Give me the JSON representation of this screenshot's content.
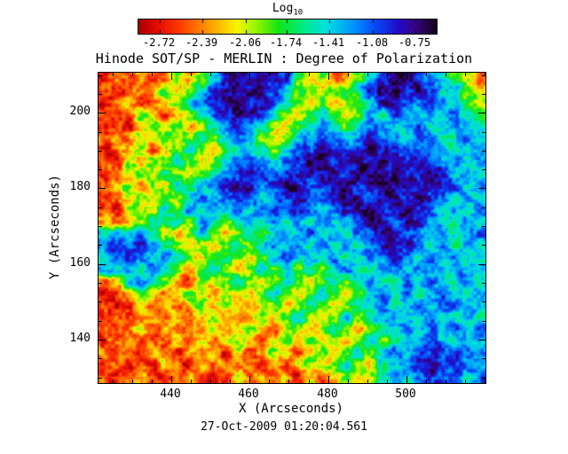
{
  "title": "Hinode SOT/SP - MERLIN : Degree of Polarization",
  "timestamp": "27-Oct-2009 01:20:04.561",
  "colorbar": {
    "label_main": "Log",
    "label_sub": "10",
    "ticks": [
      "-2.72",
      "-2.39",
      "-2.06",
      "-1.74",
      "-1.41",
      "-1.08",
      "-0.75"
    ],
    "tick_values": [
      -2.72,
      -2.39,
      -2.06,
      -1.74,
      -1.41,
      -1.08,
      -0.75
    ],
    "vmin": -2.885,
    "vmax": -0.585,
    "colormap_stops": [
      [
        0.0,
        170,
        0,
        0
      ],
      [
        0.06,
        230,
        10,
        0
      ],
      [
        0.14,
        255,
        60,
        0
      ],
      [
        0.24,
        255,
        160,
        0
      ],
      [
        0.33,
        250,
        245,
        0
      ],
      [
        0.4,
        140,
        245,
        0
      ],
      [
        0.47,
        20,
        230,
        20
      ],
      [
        0.55,
        0,
        235,
        130
      ],
      [
        0.63,
        0,
        225,
        225
      ],
      [
        0.72,
        0,
        150,
        255
      ],
      [
        0.8,
        10,
        70,
        245
      ],
      [
        0.875,
        35,
        10,
        200
      ],
      [
        0.93,
        55,
        5,
        130
      ],
      [
        1.0,
        20,
        0,
        30
      ]
    ]
  },
  "axes": {
    "xlabel": "X (Arcseconds)",
    "ylabel": "Y (Arcseconds)",
    "x_range": [
      421.4,
      520.2
    ],
    "y_range": [
      128.5,
      210.6
    ],
    "x_ticks": [
      440,
      460,
      480,
      500
    ],
    "y_ticks": [
      140,
      160,
      180,
      200
    ],
    "minor_tick_interval": 5
  },
  "chart_data": {
    "type": "heatmap",
    "title": "Hinode SOT/SP - MERLIN : Degree of Polarization",
    "xlabel": "X (Arcseconds)",
    "ylabel": "Y (Arcseconds)",
    "colorbar_label": "Log10",
    "colorbar_ticks": [
      -2.72,
      -2.39,
      -2.06,
      -1.74,
      -1.41,
      -1.08,
      -0.75
    ],
    "colormap": "rainbow: red = low polarization, dark purple/black = high",
    "x_range": [
      421.4,
      520.2
    ],
    "y_range": [
      128.5,
      210.6
    ],
    "value_range_log10": [
      -2.885,
      -0.585
    ],
    "grid_cols": 32,
    "grid_rows": 26,
    "grid_order": "rows top (y=210.6) to bottom (y=128.5), columns left (x=421.4) to right (x=520.2)",
    "values_log10": [
      [
        -2.7,
        -2.5,
        -2.7,
        -2.2,
        -2.5,
        -2.5,
        -1.9,
        -2.2,
        -1.9,
        -1.45,
        -0.95,
        -0.78,
        -0.78,
        -0.95,
        -0.78,
        -0.95,
        -1.9,
        -2.2,
        -1.9,
        -2.5,
        -2.2,
        -1.9,
        -1.45,
        -0.95,
        -0.78,
        -0.78,
        -0.95,
        -1.15,
        -1.45,
        -1.9,
        -2.2,
        -2.5
      ],
      [
        -2.5,
        -2.7,
        -2.5,
        -2.5,
        -2.2,
        -1.9,
        -2.2,
        -1.9,
        -1.45,
        -0.95,
        -0.78,
        -0.78,
        -0.78,
        -0.78,
        -0.95,
        -1.45,
        -1.9,
        -1.9,
        -2.2,
        -1.9,
        -1.9,
        -1.45,
        -0.95,
        -0.78,
        -0.78,
        -0.95,
        -0.78,
        -0.95,
        -1.45,
        -1.15,
        -1.9,
        -2.2
      ],
      [
        -2.7,
        -2.5,
        -2.2,
        -2.7,
        -2.5,
        -2.2,
        -1.9,
        -1.45,
        -1.15,
        -0.95,
        -0.78,
        -0.78,
        -0.95,
        -0.78,
        -0.95,
        -1.45,
        -1.9,
        -2.2,
        -1.9,
        -2.2,
        -1.9,
        -1.9,
        -1.45,
        -0.95,
        -0.78,
        -0.95,
        -1.15,
        -0.95,
        -1.15,
        -1.45,
        -1.9,
        -1.9
      ],
      [
        -2.5,
        -2.7,
        -2.5,
        -1.9,
        -2.2,
        -2.5,
        -2.2,
        -1.9,
        -1.45,
        -1.15,
        -0.95,
        -0.78,
        -0.78,
        -0.95,
        -1.45,
        -1.9,
        -2.2,
        -1.9,
        -1.45,
        -1.9,
        -2.2,
        -1.9,
        -1.15,
        -1.45,
        -0.95,
        -1.15,
        -1.45,
        -1.15,
        -1.45,
        -1.15,
        -1.45,
        -1.9
      ],
      [
        -2.7,
        -2.5,
        -2.7,
        -2.2,
        -1.9,
        -2.2,
        -1.9,
        -2.2,
        -1.9,
        -1.45,
        -1.15,
        -0.95,
        -1.15,
        -1.45,
        -1.9,
        -2.2,
        -1.9,
        -1.45,
        -1.15,
        -1.45,
        -1.9,
        -1.45,
        -1.15,
        -1.15,
        -1.45,
        -1.45,
        -1.15,
        -1.45,
        -1.45,
        -1.15,
        -1.45,
        -1.45
      ],
      [
        -2.5,
        -2.2,
        -2.5,
        -1.9,
        -2.2,
        -1.9,
        -2.2,
        -1.9,
        -1.45,
        -1.9,
        -1.45,
        -1.15,
        -1.45,
        -1.9,
        -2.2,
        -1.9,
        -1.45,
        -1.15,
        -0.95,
        -1.15,
        -1.45,
        -1.15,
        -0.95,
        -1.15,
        -1.15,
        -1.45,
        -1.15,
        -1.15,
        -1.45,
        -1.45,
        -1.15,
        -1.45
      ],
      [
        -2.7,
        -2.5,
        -2.2,
        -1.9,
        -2.5,
        -2.2,
        -1.9,
        -1.45,
        -1.9,
        -2.2,
        -1.9,
        -1.45,
        -1.15,
        -1.45,
        -1.9,
        -1.45,
        -1.15,
        -0.95,
        -0.78,
        -0.95,
        -1.15,
        -0.95,
        -0.78,
        -0.95,
        -0.95,
        -1.15,
        -0.95,
        -1.15,
        -1.15,
        -1.45,
        -1.45,
        -1.15
      ],
      [
        -2.5,
        -2.7,
        -1.9,
        -2.2,
        -1.9,
        -1.9,
        -1.45,
        -1.9,
        -2.2,
        -1.9,
        -1.45,
        -1.15,
        -0.95,
        -1.15,
        -1.45,
        -1.15,
        -0.95,
        -0.78,
        -0.78,
        -0.95,
        -0.95,
        -0.78,
        -0.78,
        -0.78,
        -0.95,
        -0.95,
        -0.78,
        -0.95,
        -1.15,
        -1.15,
        -1.45,
        -1.15
      ],
      [
        -2.7,
        -2.5,
        -2.2,
        -1.9,
        -2.2,
        -1.45,
        -1.9,
        -2.2,
        -1.9,
        -1.45,
        -1.15,
        -0.95,
        -0.78,
        -0.95,
        -1.15,
        -0.95,
        -0.78,
        -0.78,
        -0.95,
        -0.78,
        -0.95,
        -0.78,
        -0.78,
        -0.78,
        -0.78,
        -0.95,
        -0.78,
        -0.78,
        -0.95,
        -1.45,
        -1.15,
        -1.45
      ],
      [
        -2.5,
        -2.2,
        -1.9,
        -2.5,
        -1.9,
        -2.2,
        -1.45,
        -1.9,
        -1.45,
        -1.15,
        -0.95,
        -0.78,
        -0.78,
        -1.15,
        -0.95,
        -0.78,
        -0.78,
        -0.95,
        -0.95,
        -0.78,
        -0.78,
        -0.95,
        -0.78,
        -0.78,
        -0.78,
        -0.78,
        -0.78,
        -0.78,
        -0.95,
        -1.15,
        -1.45,
        -1.15
      ],
      [
        -2.7,
        -2.5,
        -2.2,
        -1.9,
        -2.2,
        -1.9,
        -1.9,
        -1.45,
        -1.15,
        -1.45,
        -1.15,
        -0.95,
        -1.15,
        -1.45,
        -1.15,
        -0.95,
        -0.78,
        -0.95,
        -1.15,
        -0.95,
        -0.78,
        -0.78,
        -0.95,
        -0.78,
        -0.78,
        -0.95,
        -0.78,
        -0.95,
        -1.15,
        -1.45,
        -1.15,
        -1.45
      ],
      [
        -2.5,
        -2.7,
        -1.9,
        -2.2,
        -1.9,
        -1.45,
        -1.9,
        -1.15,
        -1.45,
        -1.15,
        -1.45,
        -1.15,
        -1.45,
        -1.15,
        -0.95,
        -1.15,
        -0.95,
        -1.15,
        -1.45,
        -1.15,
        -0.95,
        -0.78,
        -0.78,
        -0.95,
        -0.78,
        -0.78,
        -0.95,
        -1.15,
        -1.45,
        -1.15,
        -1.45,
        -1.15
      ],
      [
        -2.2,
        -2.5,
        -2.2,
        -1.9,
        -1.45,
        -1.9,
        -1.45,
        -1.9,
        -1.15,
        -1.45,
        -1.9,
        -1.45,
        -1.15,
        -1.45,
        -1.15,
        -1.45,
        -1.15,
        -1.45,
        -1.15,
        -1.45,
        -1.15,
        -0.95,
        -0.78,
        -0.78,
        -0.95,
        -0.78,
        -0.95,
        -1.15,
        -1.45,
        -1.45,
        -1.15,
        -1.45
      ],
      [
        -1.45,
        -1.15,
        -1.45,
        -1.15,
        -1.45,
        -1.9,
        -2.2,
        -1.9,
        -1.45,
        -1.9,
        -2.2,
        -1.9,
        -1.45,
        -1.9,
        -1.45,
        -1.15,
        -1.45,
        -1.15,
        -1.45,
        -1.15,
        -1.45,
        -1.15,
        -0.95,
        -0.78,
        -0.78,
        -0.95,
        -1.15,
        -1.45,
        -1.15,
        -1.45,
        -1.45,
        -1.15
      ],
      [
        -1.15,
        -0.95,
        -1.15,
        -0.95,
        -1.15,
        -1.45,
        -1.9,
        -2.2,
        -1.9,
        -2.2,
        -1.9,
        -1.45,
        -1.9,
        -1.45,
        -1.15,
        -1.45,
        -1.15,
        -1.45,
        -1.15,
        -1.45,
        -1.15,
        -1.45,
        -1.15,
        -0.95,
        -0.78,
        -0.95,
        -1.15,
        -1.45,
        -1.15,
        -1.45,
        -1.15,
        -1.45
      ],
      [
        -1.45,
        -1.15,
        -0.95,
        -1.15,
        -1.45,
        -1.15,
        -1.45,
        -1.9,
        -2.2,
        -1.9,
        -1.45,
        -1.9,
        -2.2,
        -1.9,
        -1.45,
        -1.15,
        -1.45,
        -1.15,
        -1.45,
        -1.15,
        -1.45,
        -1.45,
        -1.15,
        -1.15,
        -0.95,
        -1.15,
        -1.45,
        -1.15,
        -1.45,
        -1.15,
        -1.45,
        -1.45
      ],
      [
        -1.15,
        -1.45,
        -1.15,
        -1.45,
        -1.15,
        -1.45,
        -1.9,
        -2.2,
        -1.9,
        -1.45,
        -1.9,
        -2.2,
        -1.9,
        -1.45,
        -1.9,
        -1.45,
        -1.9,
        -1.45,
        -1.9,
        -1.45,
        -1.15,
        -1.45,
        -1.45,
        -1.15,
        -1.15,
        -1.45,
        -1.15,
        -1.45,
        -1.45,
        -1.15,
        -1.45,
        -1.15
      ],
      [
        -2.5,
        -2.2,
        -1.45,
        -1.15,
        -1.45,
        -1.9,
        -2.2,
        -2.5,
        -1.9,
        -2.2,
        -1.9,
        -1.45,
        -1.9,
        -2.2,
        -1.9,
        -1.45,
        -1.9,
        -2.2,
        -1.9,
        -1.45,
        -1.9,
        -1.45,
        -1.15,
        -1.45,
        -1.45,
        -1.15,
        -1.45,
        -1.15,
        -1.45,
        -1.45,
        -1.15,
        -1.45
      ],
      [
        -2.7,
        -2.5,
        -2.2,
        -1.9,
        -2.2,
        -2.5,
        -2.2,
        -1.9,
        -2.2,
        -2.5,
        -2.2,
        -1.9,
        -2.2,
        -1.9,
        -1.45,
        -1.9,
        -2.2,
        -1.9,
        -1.45,
        -1.9,
        -2.2,
        -1.9,
        -1.45,
        -1.15,
        -1.45,
        -1.15,
        -1.45,
        -1.45,
        -1.15,
        -1.45,
        -1.45,
        -1.15
      ],
      [
        -2.5,
        -2.7,
        -2.5,
        -2.2,
        -2.5,
        -2.2,
        -2.5,
        -2.2,
        -1.9,
        -2.2,
        -1.9,
        -2.2,
        -2.5,
        -2.2,
        -1.9,
        -2.2,
        -1.9,
        -1.45,
        -1.9,
        -2.2,
        -1.9,
        -1.45,
        -1.45,
        -1.15,
        -1.45,
        -1.45,
        -1.15,
        -1.45,
        -1.15,
        -1.15,
        -1.45,
        -1.45
      ],
      [
        -2.7,
        -2.5,
        -2.7,
        -2.5,
        -2.2,
        -2.5,
        -2.2,
        -2.5,
        -2.2,
        -1.9,
        -2.2,
        -2.5,
        -2.2,
        -1.9,
        -2.2,
        -1.9,
        -1.45,
        -1.9,
        -2.2,
        -1.9,
        -1.45,
        -1.9,
        -1.45,
        -1.45,
        -1.15,
        -1.45,
        -1.45,
        -1.15,
        -1.45,
        -1.45,
        -1.15,
        -1.45
      ],
      [
        -2.5,
        -2.7,
        -2.5,
        -2.2,
        -2.7,
        -2.2,
        -2.5,
        -2.2,
        -2.5,
        -2.2,
        -2.5,
        -2.2,
        -1.9,
        -2.2,
        -2.5,
        -2.2,
        -1.9,
        -2.2,
        -1.9,
        -1.45,
        -1.9,
        -2.2,
        -1.9,
        -1.45,
        -1.45,
        -1.15,
        -1.45,
        -1.15,
        -1.45,
        -1.15,
        -1.45,
        -1.15
      ],
      [
        -2.7,
        -2.5,
        -2.2,
        -2.5,
        -2.5,
        -2.7,
        -2.2,
        -2.5,
        -2.2,
        -2.5,
        -2.2,
        -1.9,
        -2.2,
        -2.5,
        -2.2,
        -1.9,
        -2.2,
        -1.9,
        -2.2,
        -1.9,
        -2.2,
        -1.9,
        -1.45,
        -1.9,
        -1.45,
        -1.45,
        -1.15,
        -0.95,
        -1.15,
        -1.45,
        -1.15,
        -1.45
      ],
      [
        -2.5,
        -2.7,
        -2.5,
        -2.7,
        -2.2,
        -2.5,
        -2.7,
        -2.2,
        -2.5,
        -2.2,
        -2.7,
        -2.2,
        -2.5,
        -2.2,
        -1.9,
        -2.2,
        -2.5,
        -2.2,
        -1.9,
        -2.2,
        -1.9,
        -1.45,
        -1.9,
        -1.45,
        -1.15,
        -1.45,
        -0.95,
        -0.95,
        -1.15,
        -0.95,
        -1.15,
        -1.15
      ],
      [
        -2.7,
        -2.5,
        -2.7,
        -2.5,
        -2.7,
        -2.2,
        -2.5,
        -2.7,
        -2.2,
        -2.5,
        -2.2,
        -2.5,
        -2.2,
        -2.7,
        -2.2,
        -2.5,
        -2.2,
        -1.9,
        -2.2,
        -1.9,
        -1.45,
        -1.9,
        -2.2,
        -1.45,
        -1.45,
        -1.15,
        -0.95,
        -0.78,
        -0.95,
        -0.95,
        -1.15,
        -1.45
      ],
      [
        -2.5,
        -2.7,
        -2.5,
        -2.2,
        -2.5,
        -2.7,
        -2.5,
        -2.2,
        -2.5,
        -2.7,
        -2.5,
        -2.2,
        -2.5,
        -2.2,
        -2.5,
        -2.2,
        -2.7,
        -2.2,
        -2.5,
        -2.2,
        -1.9,
        -2.2,
        -1.9,
        -1.45,
        -1.15,
        -1.45,
        -1.15,
        -0.95,
        -1.15,
        -0.95,
        -1.45,
        -1.15
      ]
    ]
  }
}
